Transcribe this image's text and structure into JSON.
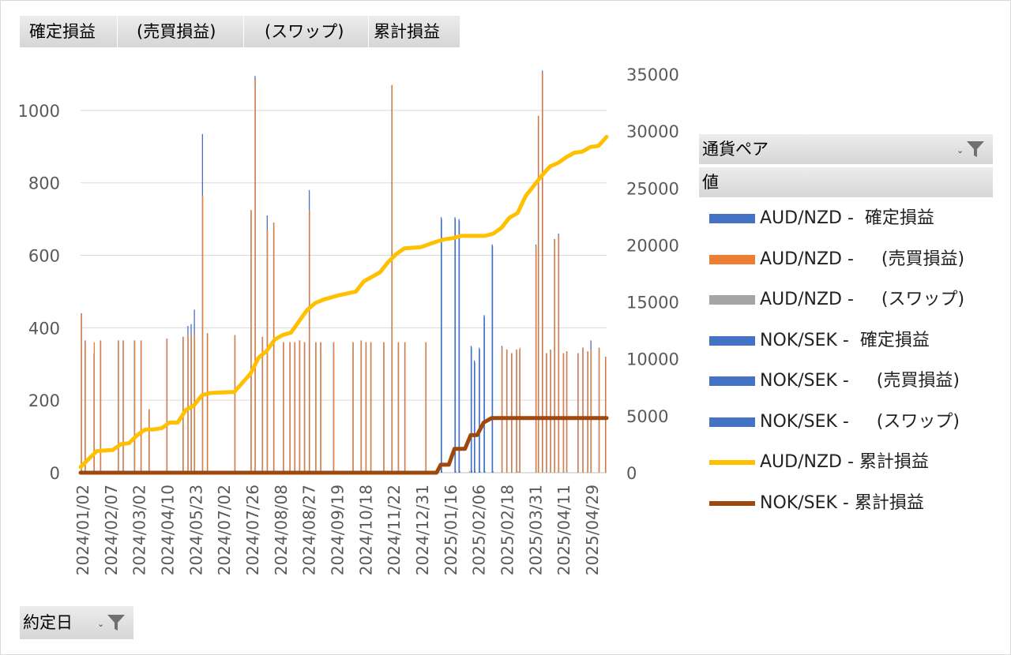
{
  "header_buttons": [
    "確定損益",
    "(売買損益)",
    "(スワップ)",
    "累計損益"
  ],
  "legend": {
    "title": "通貨ペア",
    "subtitle": "値",
    "items": [
      {
        "label": "AUD/NZD -  確定損益",
        "color": "#4472c4",
        "kind": "bar"
      },
      {
        "label": "AUD/NZD -     (売買損益)",
        "color": "#ed7d31",
        "kind": "bar"
      },
      {
        "label": "AUD/NZD -     (スワップ)",
        "color": "#a5a5a5",
        "kind": "bar"
      },
      {
        "label": "NOK/SEK -  確定損益",
        "color": "#4472c4",
        "kind": "bar"
      },
      {
        "label": "NOK/SEK -     (売買損益)",
        "color": "#4472c4",
        "kind": "bar"
      },
      {
        "label": "NOK/SEK -     (スワップ)",
        "color": "#4472c4",
        "kind": "bar"
      },
      {
        "label": "AUD/NZD - 累計損益",
        "color": "#ffc000",
        "kind": "line"
      },
      {
        "label": "NOK/SEK - 累計損益",
        "color": "#9e480e",
        "kind": "line"
      }
    ]
  },
  "axis_filter_label": "約定日",
  "chart_data": {
    "type": "bar",
    "y_left": {
      "ticks": [
        "0",
        "200",
        "400",
        "600",
        "800",
        "1000"
      ],
      "ylim": [
        0,
        1100
      ]
    },
    "y_right": {
      "ticks": [
        "0",
        "5000",
        "10000",
        "15000",
        "20000",
        "25000",
        "30000",
        "35000"
      ],
      "ylim": [
        0,
        35000
      ]
    },
    "x_tick_labels": [
      "2024/01/02",
      "2024/02/07",
      "2024/03/02",
      "2024/04/10",
      "2024/05/23",
      "2024/07/02",
      "2024/07/26",
      "2024/08/08",
      "2024/08/27",
      "2024/09/19",
      "2024/10/18",
      "2024/11/22",
      "2024/12/31",
      "2025/01/16",
      "2025/02/06",
      "2025/02/18",
      "2025/03/31",
      "2025/04/11",
      "2025/04/29"
    ],
    "grid": true,
    "series": [
      {
        "name": "AUD/NZD - 確定損益",
        "color": "#4472c4",
        "values": [
          [
            0.3,
            440
          ],
          [
            5,
            365
          ],
          [
            16,
            330
          ],
          [
            24,
            365
          ],
          [
            46,
            365
          ],
          [
            52,
            365
          ],
          [
            66,
            365
          ],
          [
            74,
            365
          ],
          [
            84,
            175
          ],
          [
            106,
            370
          ],
          [
            126,
            375
          ],
          [
            132,
            405
          ],
          [
            136,
            410
          ],
          [
            140,
            450
          ],
          [
            150,
            935
          ],
          [
            156,
            385
          ],
          [
            190,
            380
          ],
          [
            210,
            725
          ],
          [
            215,
            1095
          ],
          [
            224,
            375
          ],
          [
            230,
            710
          ],
          [
            238,
            690
          ],
          [
            250,
            360
          ],
          [
            258,
            360
          ],
          [
            264,
            360
          ],
          [
            270,
            365
          ],
          [
            276,
            360
          ],
          [
            282,
            780
          ],
          [
            290,
            360
          ],
          [
            296,
            360
          ],
          [
            312,
            360
          ],
          [
            336,
            360
          ],
          [
            346,
            365
          ],
          [
            352,
            360
          ],
          [
            358,
            360
          ],
          [
            374,
            360
          ],
          [
            384,
            1070
          ],
          [
            392,
            360
          ],
          [
            400,
            360
          ],
          [
            426,
            360
          ],
          [
            520,
            350
          ],
          [
            526,
            340
          ],
          [
            532,
            330
          ],
          [
            538,
            340
          ],
          [
            542,
            340
          ],
          [
            562,
            630
          ],
          [
            565,
            985
          ],
          [
            570,
            1110
          ],
          [
            575,
            330
          ],
          [
            580,
            340
          ],
          [
            585,
            645
          ],
          [
            590,
            660
          ],
          [
            596,
            330
          ],
          [
            600,
            335
          ],
          [
            614,
            330
          ],
          [
            620,
            345
          ],
          [
            626,
            335
          ],
          [
            630,
            365
          ],
          [
            640,
            345
          ],
          [
            648,
            320
          ]
        ]
      },
      {
        "name": "AUD/NZD -     (売買損益)",
        "color": "#ed7d31",
        "values": [
          [
            0.6,
            440
          ],
          [
            5.3,
            360
          ],
          [
            16.3,
            360
          ],
          [
            24.3,
            365
          ],
          [
            46.3,
            365
          ],
          [
            52.3,
            365
          ],
          [
            66.3,
            365
          ],
          [
            74.3,
            365
          ],
          [
            84.3,
            175
          ],
          [
            106.3,
            370
          ],
          [
            126.3,
            375
          ],
          [
            132.3,
            380
          ],
          [
            136.3,
            380
          ],
          [
            140.3,
            380
          ],
          [
            150.3,
            765
          ],
          [
            156.3,
            385
          ],
          [
            190.3,
            380
          ],
          [
            210.3,
            725
          ],
          [
            215.3,
            1085
          ],
          [
            224.3,
            375
          ],
          [
            230.3,
            670
          ],
          [
            238.3,
            690
          ],
          [
            250.3,
            360
          ],
          [
            258.3,
            360
          ],
          [
            264.3,
            360
          ],
          [
            270.3,
            365
          ],
          [
            276.3,
            360
          ],
          [
            282.3,
            725
          ],
          [
            290.3,
            360
          ],
          [
            296.3,
            360
          ],
          [
            312.3,
            360
          ],
          [
            336.3,
            360
          ],
          [
            346.3,
            365
          ],
          [
            352.3,
            360
          ],
          [
            358.3,
            360
          ],
          [
            374.3,
            360
          ],
          [
            384.3,
            1070
          ],
          [
            392.3,
            360
          ],
          [
            400.3,
            360
          ],
          [
            426.3,
            360
          ],
          [
            520.3,
            345
          ],
          [
            526.3,
            340
          ],
          [
            532.3,
            330
          ],
          [
            538.3,
            340
          ],
          [
            542.3,
            345
          ],
          [
            562.3,
            625
          ],
          [
            565.3,
            985
          ],
          [
            570.3,
            1105
          ],
          [
            575.3,
            330
          ],
          [
            580.3,
            340
          ],
          [
            585.3,
            640
          ],
          [
            590.3,
            655
          ],
          [
            596.3,
            330
          ],
          [
            600.3,
            335
          ],
          [
            614.3,
            330
          ],
          [
            620.3,
            345
          ],
          [
            626.3,
            335
          ],
          [
            630.3,
            340
          ],
          [
            640.3,
            345
          ],
          [
            648.3,
            320
          ]
        ]
      },
      {
        "name": "AUD/NZD -     (スワップ)",
        "color": "#a5a5a5",
        "values": [
          [
            10,
            5
          ],
          [
            60,
            4
          ],
          [
            120,
            5
          ],
          [
            180,
            4
          ],
          [
            240,
            5
          ],
          [
            300,
            4
          ],
          [
            360,
            5
          ],
          [
            420,
            4
          ],
          [
            480,
            5
          ],
          [
            540,
            4
          ],
          [
            600,
            5
          ],
          [
            640,
            4
          ]
        ]
      },
      {
        "name": "NOK/SEK -  確定損益",
        "color": "#4472c4",
        "values": [
          [
            445,
            705
          ],
          [
            462,
            705
          ],
          [
            467,
            700
          ],
          [
            482,
            350
          ],
          [
            486,
            310
          ],
          [
            492,
            345
          ],
          [
            498,
            435
          ],
          [
            508,
            630
          ]
        ]
      },
      {
        "name": "NOK/SEK -     (売買損益)",
        "color": "#4472c4",
        "values": [
          [
            445.4,
            700
          ],
          [
            462.4,
            700
          ],
          [
            467.4,
            695
          ],
          [
            482.4,
            345
          ],
          [
            486.4,
            305
          ],
          [
            492.4,
            340
          ],
          [
            498.4,
            430
          ],
          [
            508.4,
            625
          ]
        ]
      },
      {
        "name": "NOK/SEK -     (スワップ)",
        "color": "#4472c4",
        "values": [
          [
            445.8,
            5
          ],
          [
            462.8,
            5
          ],
          [
            467.8,
            5
          ],
          [
            482.8,
            5
          ],
          [
            486.8,
            5
          ],
          [
            492.8,
            5
          ],
          [
            498.8,
            5
          ],
          [
            508.8,
            5
          ]
        ]
      },
      {
        "name": "AUD/NZD - 累計損益",
        "color": "#ffc000",
        "kind": "line",
        "axis": "right",
        "values": [
          [
            0,
            500
          ],
          [
            10,
            1200
          ],
          [
            20,
            1900
          ],
          [
            40,
            2000
          ],
          [
            50,
            2500
          ],
          [
            60,
            2600
          ],
          [
            70,
            3300
          ],
          [
            80,
            3800
          ],
          [
            90,
            3800
          ],
          [
            100,
            3900
          ],
          [
            110,
            4400
          ],
          [
            120,
            4400
          ],
          [
            130,
            5500
          ],
          [
            140,
            5900
          ],
          [
            150,
            6800
          ],
          [
            160,
            7000
          ],
          [
            190,
            7100
          ],
          [
            200,
            7900
          ],
          [
            210,
            8700
          ],
          [
            220,
            10100
          ],
          [
            230,
            10700
          ],
          [
            240,
            11700
          ],
          [
            250,
            12100
          ],
          [
            260,
            12300
          ],
          [
            270,
            13300
          ],
          [
            280,
            14300
          ],
          [
            290,
            14900
          ],
          [
            300,
            15200
          ],
          [
            320,
            15600
          ],
          [
            340,
            15900
          ],
          [
            350,
            16800
          ],
          [
            360,
            17200
          ],
          [
            370,
            17600
          ],
          [
            380,
            18500
          ],
          [
            390,
            19200
          ],
          [
            400,
            19700
          ],
          [
            420,
            19800
          ],
          [
            440,
            20300
          ],
          [
            450,
            20500
          ],
          [
            460,
            20600
          ],
          [
            470,
            20800
          ],
          [
            500,
            20800
          ],
          [
            510,
            21000
          ],
          [
            520,
            21500
          ],
          [
            530,
            22400
          ],
          [
            540,
            22800
          ],
          [
            550,
            24300
          ],
          [
            560,
            25200
          ],
          [
            570,
            26100
          ],
          [
            580,
            26900
          ],
          [
            590,
            27200
          ],
          [
            600,
            27700
          ],
          [
            610,
            28100
          ],
          [
            620,
            28200
          ],
          [
            630,
            28600
          ],
          [
            640,
            28700
          ],
          [
            650,
            29500
          ]
        ]
      },
      {
        "name": "NOK/SEK - 累計損益",
        "color": "#9e480e",
        "kind": "line",
        "axis": "right",
        "values": [
          [
            0,
            0
          ],
          [
            440,
            0
          ],
          [
            445,
            700
          ],
          [
            455,
            700
          ],
          [
            462,
            2100
          ],
          [
            475,
            2100
          ],
          [
            482,
            3300
          ],
          [
            490,
            3300
          ],
          [
            498,
            4400
          ],
          [
            508,
            4800
          ],
          [
            510,
            4800
          ],
          [
            650,
            4800
          ]
        ]
      }
    ]
  }
}
